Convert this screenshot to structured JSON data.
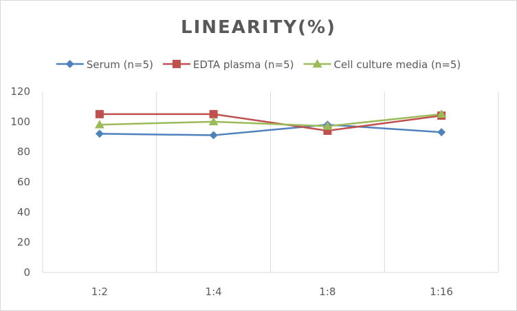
{
  "chart_data": {
    "type": "line",
    "title": "LINEARITY(%)",
    "xlabel": "",
    "ylabel": "",
    "categories": [
      "1:2",
      "1:4",
      "1:8",
      "1:16"
    ],
    "ylim": [
      0,
      120
    ],
    "yticks": [
      0,
      20,
      40,
      60,
      80,
      100,
      120
    ],
    "grid": "vertical",
    "legend_position": "top",
    "series": [
      {
        "name": "Serum (n=5)",
        "values": [
          92,
          91,
          98,
          93
        ],
        "color": "#4f81bd",
        "marker": "diamond"
      },
      {
        "name": "EDTA plasma (n=5)",
        "values": [
          105,
          105,
          94,
          104
        ],
        "color": "#c0504d",
        "marker": "square"
      },
      {
        "name": "Cell culture media (n=5)",
        "values": [
          98,
          100,
          97,
          105
        ],
        "color": "#9bbb59",
        "marker": "triangle"
      }
    ]
  }
}
